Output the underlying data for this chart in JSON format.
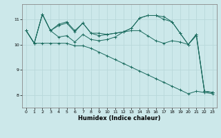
{
  "title": "",
  "xlabel": "Humidex (Indice chaleur)",
  "ylabel": "",
  "bg_color": "#cce8ea",
  "line_color": "#1a6b5e",
  "grid_color": "#b8d8da",
  "xlim": [
    -0.5,
    23.5
  ],
  "ylim": [
    7.5,
    11.6
  ],
  "yticks": [
    8,
    9,
    10,
    11
  ],
  "xticks": [
    0,
    1,
    2,
    3,
    4,
    5,
    6,
    7,
    8,
    9,
    10,
    11,
    12,
    13,
    14,
    15,
    16,
    17,
    18,
    19,
    20,
    21,
    22,
    23
  ],
  "series": [
    [
      10.55,
      10.05,
      11.2,
      10.55,
      10.8,
      10.9,
      10.55,
      10.85,
      10.45,
      10.45,
      10.4,
      10.45,
      10.5,
      10.65,
      11.05,
      11.15,
      11.15,
      11.1,
      10.9,
      10.45,
      10.0,
      10.4,
      8.15,
      8.1
    ],
    [
      10.55,
      10.05,
      11.2,
      10.55,
      10.75,
      10.85,
      10.5,
      10.85,
      10.45,
      10.35,
      10.4,
      10.45,
      10.5,
      10.65,
      11.05,
      11.15,
      11.15,
      11.0,
      10.9,
      10.45,
      10.0,
      10.4,
      8.15,
      8.1
    ],
    [
      10.55,
      10.05,
      11.2,
      10.55,
      10.3,
      10.35,
      10.1,
      10.4,
      10.2,
      10.15,
      10.2,
      10.3,
      10.5,
      10.55,
      10.55,
      10.35,
      10.15,
      10.05,
      10.15,
      10.1,
      10.0,
      10.35,
      8.15,
      8.1
    ],
    [
      10.55,
      10.05,
      10.05,
      10.05,
      10.05,
      10.05,
      9.95,
      9.95,
      9.85,
      9.7,
      9.55,
      9.4,
      9.25,
      9.1,
      8.95,
      8.8,
      8.65,
      8.5,
      8.35,
      8.2,
      8.05,
      8.15,
      8.1,
      8.05
    ]
  ]
}
